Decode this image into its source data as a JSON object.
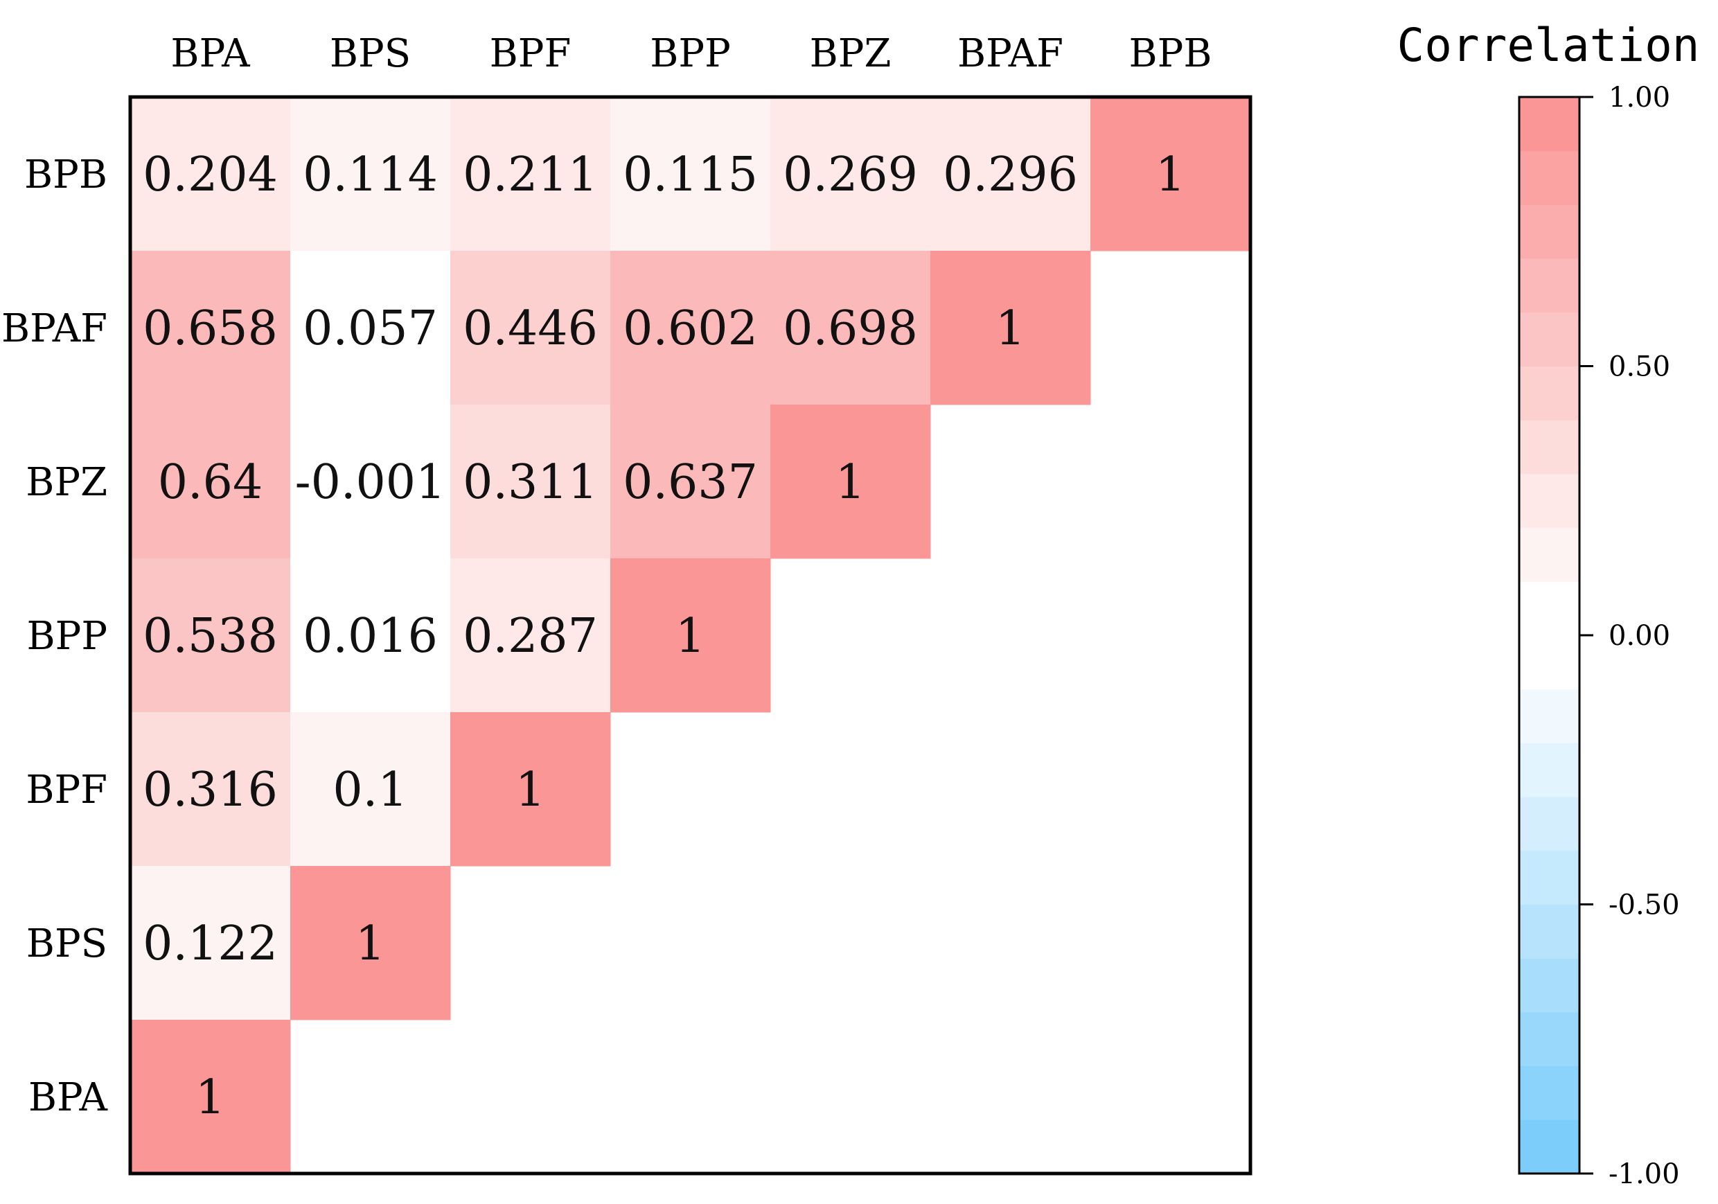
{
  "chart_data": {
    "type": "heatmap",
    "variables": [
      "BPA",
      "BPS",
      "BPF",
      "BPP",
      "BPZ",
      "BPAF",
      "BPB"
    ],
    "x_labels": [
      "BPA",
      "BPS",
      "BPF",
      "BPP",
      "BPZ",
      "BPAF",
      "BPB"
    ],
    "y_labels_top_to_bottom": [
      "BPB",
      "BPAF",
      "BPZ",
      "BPP",
      "BPF",
      "BPS",
      "BPA"
    ],
    "cells": [
      {
        "row": "BPB",
        "col": "BPA",
        "value": 0.204,
        "label": "0.204"
      },
      {
        "row": "BPB",
        "col": "BPS",
        "value": 0.114,
        "label": "0.114"
      },
      {
        "row": "BPB",
        "col": "BPF",
        "value": 0.211,
        "label": "0.211"
      },
      {
        "row": "BPB",
        "col": "BPP",
        "value": 0.115,
        "label": "0.115"
      },
      {
        "row": "BPB",
        "col": "BPZ",
        "value": 0.269,
        "label": "0.269"
      },
      {
        "row": "BPB",
        "col": "BPAF",
        "value": 0.296,
        "label": "0.296"
      },
      {
        "row": "BPB",
        "col": "BPB",
        "value": 1,
        "label": "1"
      },
      {
        "row": "BPAF",
        "col": "BPA",
        "value": 0.658,
        "label": "0.658"
      },
      {
        "row": "BPAF",
        "col": "BPS",
        "value": 0.057,
        "label": "0.057"
      },
      {
        "row": "BPAF",
        "col": "BPF",
        "value": 0.446,
        "label": "0.446"
      },
      {
        "row": "BPAF",
        "col": "BPP",
        "value": 0.602,
        "label": "0.602"
      },
      {
        "row": "BPAF",
        "col": "BPZ",
        "value": 0.698,
        "label": "0.698"
      },
      {
        "row": "BPAF",
        "col": "BPAF",
        "value": 1,
        "label": "1"
      },
      {
        "row": "BPZ",
        "col": "BPA",
        "value": 0.64,
        "label": "0.64"
      },
      {
        "row": "BPZ",
        "col": "BPS",
        "value": -0.001,
        "label": "-0.001"
      },
      {
        "row": "BPZ",
        "col": "BPF",
        "value": 0.311,
        "label": "0.311"
      },
      {
        "row": "BPZ",
        "col": "BPP",
        "value": 0.637,
        "label": "0.637"
      },
      {
        "row": "BPZ",
        "col": "BPZ",
        "value": 1,
        "label": "1"
      },
      {
        "row": "BPP",
        "col": "BPA",
        "value": 0.538,
        "label": "0.538"
      },
      {
        "row": "BPP",
        "col": "BPS",
        "value": 0.016,
        "label": "0.016"
      },
      {
        "row": "BPP",
        "col": "BPF",
        "value": 0.287,
        "label": "0.287"
      },
      {
        "row": "BPP",
        "col": "BPP",
        "value": 1,
        "label": "1"
      },
      {
        "row": "BPF",
        "col": "BPA",
        "value": 0.316,
        "label": "0.316"
      },
      {
        "row": "BPF",
        "col": "BPS",
        "value": 0.1,
        "label": "0.1"
      },
      {
        "row": "BPF",
        "col": "BPF",
        "value": 1,
        "label": "1"
      },
      {
        "row": "BPS",
        "col": "BPA",
        "value": 0.122,
        "label": "0.122"
      },
      {
        "row": "BPS",
        "col": "BPS",
        "value": 1,
        "label": "1"
      },
      {
        "row": "BPA",
        "col": "BPA",
        "value": 1,
        "label": "1"
      }
    ],
    "colorbar": {
      "title": "Correlation",
      "range": [
        -1,
        1
      ],
      "ticks": [
        1.0,
        0.5,
        0.0,
        -0.5,
        -1.0
      ],
      "tick_labels": [
        "1.00",
        "0.50",
        "0.00",
        "-0.50",
        "-1.00"
      ],
      "levels": 20,
      "neutral_color": "#ffffff",
      "positive_color": "#fa9696",
      "negative_color": "#7dcdfa"
    },
    "legend_position": "right",
    "grid": false
  }
}
